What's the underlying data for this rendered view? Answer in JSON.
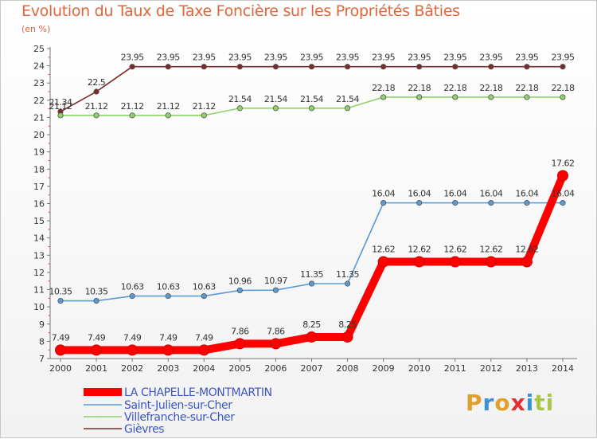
{
  "title": "Evolution du Taux de Taxe Foncière sur les Propriétés Bâties",
  "unit_label": "(en %)",
  "brand": {
    "logo_text": "Proxiti",
    "colors": [
      "#e0a02c",
      "#3b8fd8",
      "#e0a02c",
      "#e03030",
      "#3b8fd8",
      "#a8c84a",
      "#a8c84a"
    ]
  },
  "chart_data": {
    "type": "line",
    "x": [
      2000,
      2001,
      2002,
      2003,
      2004,
      2005,
      2006,
      2007,
      2008,
      2009,
      2010,
      2011,
      2012,
      2013,
      2014
    ],
    "ylim": [
      7,
      25
    ],
    "yticks": [
      7,
      8,
      9,
      10,
      11,
      12,
      13,
      14,
      15,
      16,
      17,
      18,
      19,
      20,
      21,
      22,
      23,
      24,
      25
    ],
    "grid": false,
    "legend_position": "bottom-left",
    "series": [
      {
        "name": "LA CHAPELLE-MONTMARTIN",
        "color": "#ff0000",
        "width": "thick",
        "values": [
          7.49,
          7.49,
          7.49,
          7.49,
          7.49,
          7.86,
          7.86,
          8.25,
          8.25,
          12.62,
          12.62,
          12.62,
          12.62,
          12.62,
          17.62
        ]
      },
      {
        "name": "Saint-Julien-sur-Cher",
        "color": "#5b9bd5",
        "width": "thin",
        "values": [
          10.35,
          10.35,
          10.63,
          10.63,
          10.63,
          10.96,
          10.97,
          11.35,
          11.35,
          16.04,
          16.04,
          16.04,
          16.04,
          16.04,
          16.04
        ]
      },
      {
        "name": "Villefranche-sur-Cher",
        "color": "#8fd16a",
        "width": "thin",
        "values": [
          21.12,
          21.12,
          21.12,
          21.12,
          21.12,
          21.54,
          21.54,
          21.54,
          21.54,
          22.18,
          22.18,
          22.18,
          22.18,
          22.18,
          22.18
        ]
      },
      {
        "name": "Gièvres",
        "color": "#7b2a2a",
        "width": "thin",
        "values": [
          21.34,
          22.5,
          23.95,
          23.95,
          23.95,
          23.95,
          23.95,
          23.95,
          23.95,
          23.95,
          23.95,
          23.95,
          23.95,
          23.95,
          23.95
        ]
      }
    ]
  }
}
